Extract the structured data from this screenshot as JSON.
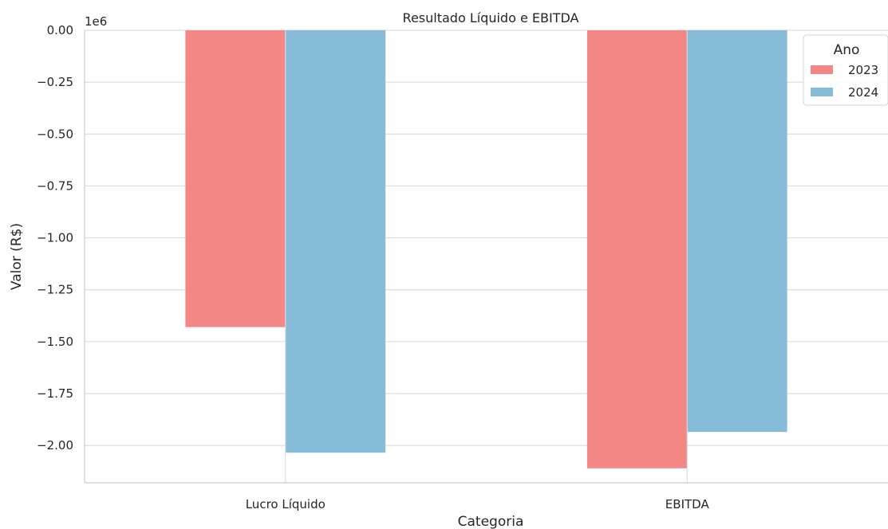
{
  "chart_data": {
    "type": "bar",
    "title": "Resultado Líquido e EBITDA",
    "xlabel": "Categoria",
    "ylabel": "Valor (R$)",
    "offset_text": "1e6",
    "categories": [
      "Lucro Líquido",
      "EBITDA"
    ],
    "series": [
      {
        "name": "2023",
        "values": [
          -1.43,
          -2.11
        ],
        "color": "#f28785"
      },
      {
        "name": "2024",
        "values": [
          -2.035,
          -1.935
        ],
        "color": "#87bcd9"
      }
    ],
    "value_scale": 1000000,
    "ylim": [
      -2.18,
      0.0
    ],
    "yticks": [
      0.0,
      -0.25,
      -0.5,
      -0.75,
      -1.0,
      -1.25,
      -1.5,
      -1.75,
      -2.0
    ],
    "ytick_labels": [
      "0.00",
      "−0.25",
      "−0.50",
      "−0.75",
      "−1.00",
      "−1.25",
      "−1.50",
      "−1.75",
      "−2.00"
    ],
    "grid": true,
    "legend": {
      "title": "Ano",
      "placement": "top-right"
    }
  }
}
